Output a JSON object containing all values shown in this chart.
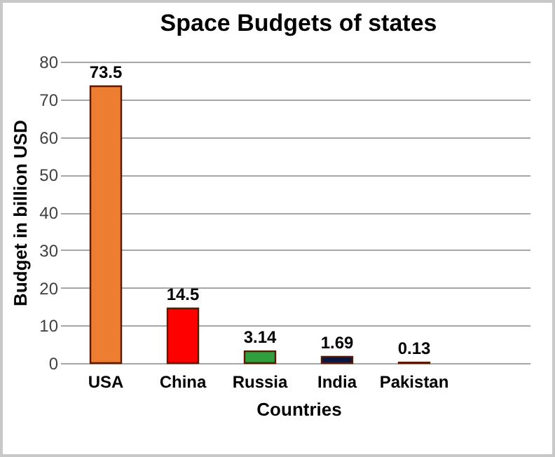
{
  "chart_data": {
    "type": "bar",
    "title": "Space Budgets of states",
    "xlabel": "Countries",
    "ylabel": "Budget in billion USD",
    "categories": [
      "USA",
      "China",
      "Russia",
      "India",
      "Pakistan",
      null
    ],
    "values": [
      73.5,
      14.5,
      3.14,
      1.69,
      0.13,
      null
    ],
    "colors": [
      "#ed7d31",
      "#ff0000",
      "#2e9e3f",
      "#0a1640",
      "#7030a0",
      "#7030a0"
    ],
    "ylim": [
      0,
      80
    ],
    "yticks": [
      0,
      10,
      20,
      30,
      40,
      50,
      60,
      70,
      80
    ],
    "grid": "y",
    "data_labels": true
  }
}
